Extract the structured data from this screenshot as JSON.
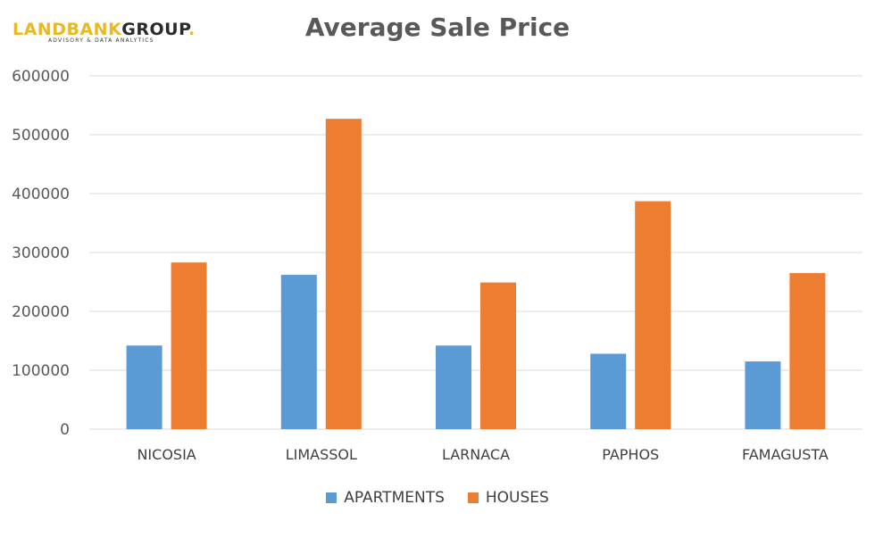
{
  "logo": {
    "part1": "LANDBANK",
    "part2": "GROUP",
    "dot": ".",
    "tagline": "ADVISORY & DATA ANALYTICS"
  },
  "colors": {
    "apartments": "#5b9bd5",
    "houses": "#ed7d31",
    "grid": "#d9d9d9",
    "logo_accent": "#e8b923"
  },
  "chart_data": {
    "type": "bar",
    "title": "Average Sale Price",
    "categories": [
      "NICOSIA",
      "LIMASSOL",
      "LARNACA",
      "PAPHOS",
      "FAMAGUSTA"
    ],
    "series": [
      {
        "name": "APARTMENTS",
        "values": [
          142000,
          262000,
          142000,
          128000,
          115000
        ]
      },
      {
        "name": "HOUSES",
        "values": [
          283000,
          527000,
          249000,
          387000,
          265000
        ]
      }
    ],
    "yticks": [
      "0",
      "100000",
      "200000",
      "300000",
      "400000",
      "500000",
      "600000"
    ],
    "ylim": [
      0,
      600000
    ],
    "xlabel": "",
    "ylabel": "",
    "grid": true,
    "legend": "bottom"
  }
}
